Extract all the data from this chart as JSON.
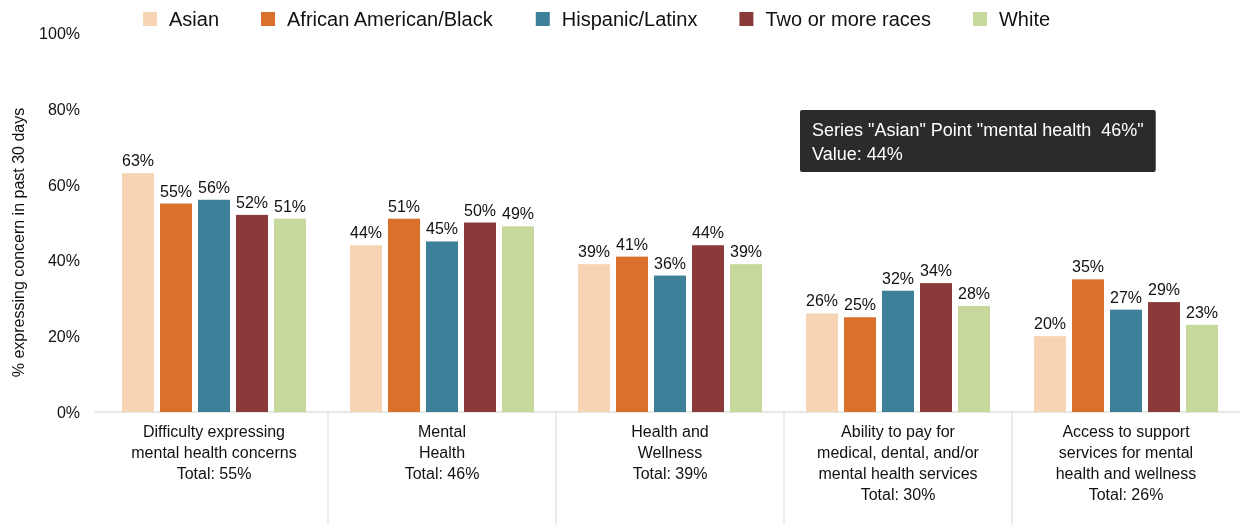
{
  "chart_data": {
    "type": "bar",
    "ylabel": "% expressing concern in past 30 days",
    "categories": [
      "Difficulty expressing\nmental health concerns\nTotal: 55%",
      "Mental\nHealth\nTotal: 46%",
      "Health and\nWellness\nTotal: 39%",
      "Ability to pay for\nmedical, dental, and/or\nmental health services\nTotal: 30%",
      "Access to support\nservices for mental\nhealth and wellness\nTotal: 26%"
    ],
    "series": [
      {
        "name": "Asian",
        "color": "#f6d4b4",
        "values": [
          63,
          44,
          39,
          26,
          20
        ],
        "value_labels": [
          "63%",
          "44%",
          "39%",
          "26%",
          "20%"
        ]
      },
      {
        "name": "African American/Black",
        "color": "#d9702b",
        "values": [
          55,
          51,
          41,
          25,
          35
        ],
        "value_labels": [
          "55%",
          "51%",
          "41%",
          "25%",
          "35%"
        ]
      },
      {
        "name": "Hispanic/Latinx",
        "color": "#3e7f99",
        "values": [
          56,
          45,
          36,
          32,
          27
        ],
        "value_labels": [
          "56%",
          "45%",
          "36%",
          "32%",
          "27%"
        ]
      },
      {
        "name": "Two or more races",
        "color": "#8b3a3a",
        "values": [
          52,
          50,
          44,
          34,
          29
        ],
        "value_labels": [
          "52%",
          "50%",
          "44%",
          "34%",
          "29%"
        ]
      },
      {
        "name": "White",
        "color": "#c6d89c",
        "values": [
          51,
          49,
          39,
          28,
          23
        ],
        "value_labels": [
          "51%",
          "49%",
          "39%",
          "28%",
          "23%"
        ]
      }
    ],
    "ylim": [
      0,
      100
    ],
    "yticks": [
      {
        "value": 0,
        "label": "0%"
      },
      {
        "value": 20,
        "label": "20%"
      },
      {
        "value": 40,
        "label": "40%"
      },
      {
        "value": 60,
        "label": "60%"
      },
      {
        "value": 80,
        "label": "80%"
      },
      {
        "value": 100,
        "label": "100%"
      }
    ],
    "grid": false,
    "legend": "top",
    "annotations": [
      "Series \"Asian\" Point \"mental health  46%\"\nValue: 44%"
    ]
  }
}
